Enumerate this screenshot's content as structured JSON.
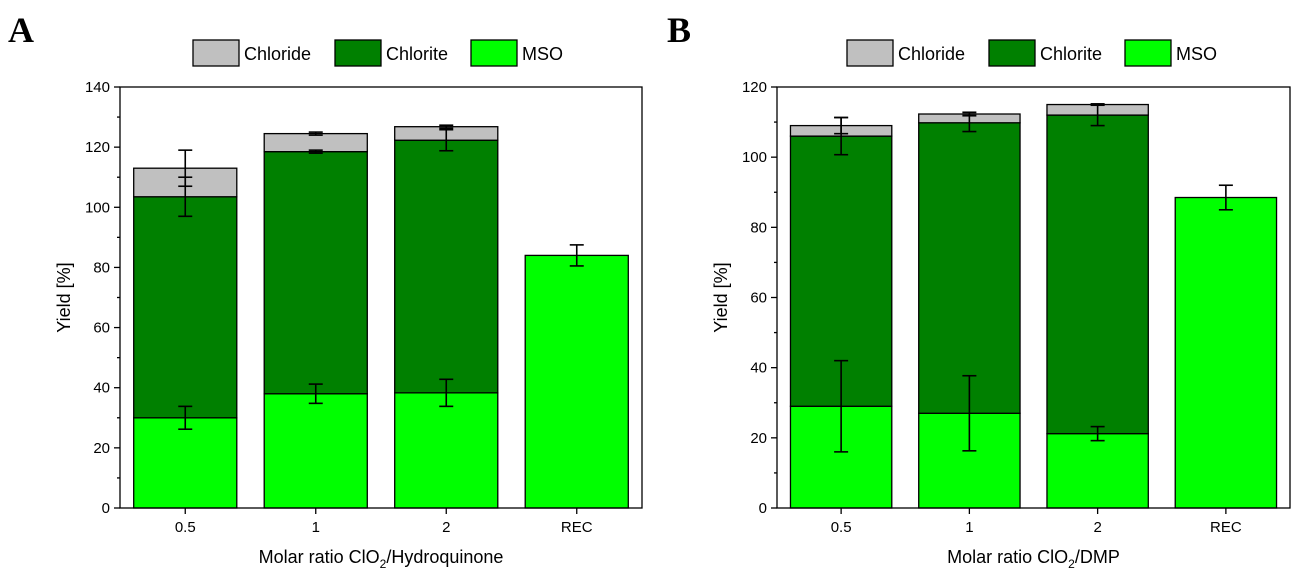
{
  "colors": {
    "Chloride": "#c0c0c0",
    "Chlorite": "#008000",
    "MSO": "#00ff00",
    "stroke": "#000000"
  },
  "chart_data": [
    {
      "panel": "A",
      "type": "bar",
      "stacked": true,
      "categories": [
        "0.5",
        "1",
        "2",
        "REC"
      ],
      "xlabel_pre": "Molar ratio ClO",
      "xlabel_sub": "2",
      "xlabel_post": "/Hydroquinone",
      "ylabel": "Yield [%]",
      "ylim": [
        0,
        140
      ],
      "yticks": [
        0,
        20,
        40,
        60,
        80,
        100,
        120,
        140
      ],
      "legend_position": "top-center",
      "legend": [
        "Chloride",
        "Chlorite",
        "MSO"
      ],
      "series": [
        {
          "name": "MSO",
          "values": [
            30,
            38,
            38.3,
            84
          ],
          "errors": [
            3.8,
            3.2,
            4.5,
            3.5
          ]
        },
        {
          "name": "Chlorite",
          "values": [
            73.5,
            80.5,
            84,
            0
          ],
          "errors": [
            6.5,
            0.5,
            3.5,
            0
          ]
        },
        {
          "name": "Chloride",
          "values": [
            9.5,
            6,
            4.5,
            0
          ],
          "errors": [
            6,
            0.5,
            0.5,
            0
          ]
        }
      ]
    },
    {
      "panel": "B",
      "type": "bar",
      "stacked": true,
      "categories": [
        "0.5",
        "1",
        "2",
        "REC"
      ],
      "xlabel_pre": "Molar ratio ClO",
      "xlabel_sub": "2",
      "xlabel_post": "/DMP",
      "ylabel": "Yield [%]",
      "ylim": [
        0,
        120
      ],
      "yticks": [
        0,
        20,
        40,
        60,
        80,
        100,
        120
      ],
      "legend_position": "top-center",
      "legend": [
        "Chloride",
        "Chlorite",
        "MSO"
      ],
      "series": [
        {
          "name": "MSO",
          "values": [
            29,
            27,
            21.2,
            88.5
          ],
          "errors": [
            13,
            10.7,
            2,
            3.5
          ]
        },
        {
          "name": "Chlorite",
          "values": [
            77,
            82.8,
            90.8,
            0
          ],
          "errors": [
            5.3,
            2.5,
            3,
            0
          ]
        },
        {
          "name": "Chloride",
          "values": [
            3,
            2.5,
            3,
            0
          ],
          "errors": [
            2.3,
            0.5,
            0.2,
            0
          ]
        }
      ]
    }
  ]
}
